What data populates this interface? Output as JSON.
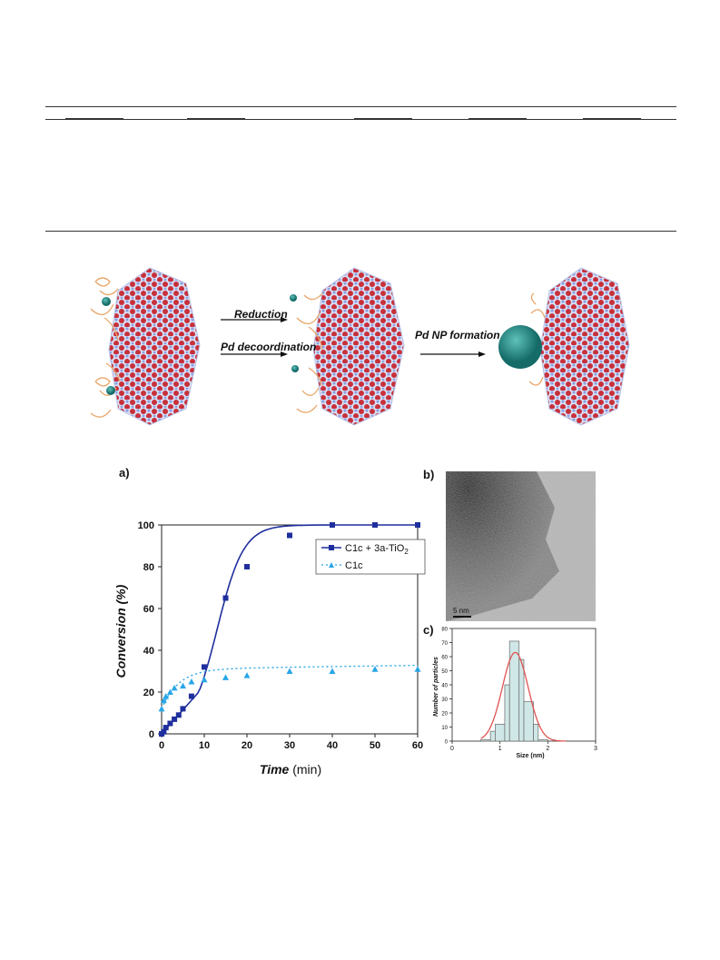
{
  "scheme": {
    "step1_line1": "Reduction",
    "step1_line2": "Pd decoordination",
    "step2": "Pd NP formation"
  },
  "panels": {
    "a": "a)",
    "b": "b)",
    "c": "c)"
  },
  "tem": {
    "scale_bar": "5 nm"
  },
  "colors": {
    "series1": "#1f2f9e",
    "series2": "#29a6e6",
    "hist_fill": "#cfe7e6",
    "fit": "#e05252",
    "tio2_red": "#c8303a",
    "tio2_blue": "#a9b8e8",
    "pd": "#1f8a86"
  },
  "chart_data": [
    {
      "type": "line",
      "xlabel_bold": "Time",
      "xlabel_unit": " (min)",
      "ylabel": "Conversion (%)",
      "xlim": [
        0,
        60
      ],
      "ylim": [
        0,
        100
      ],
      "xticks": [
        0,
        10,
        20,
        30,
        40,
        50,
        60
      ],
      "yticks": [
        0,
        20,
        40,
        60,
        80,
        100
      ],
      "legend_position": "top-right",
      "series": [
        {
          "name_main": "C1c + 3a-TiO",
          "name_sub": "2",
          "marker": "square",
          "line": "solid",
          "x": [
            0,
            0.5,
            1,
            2,
            3,
            4,
            5,
            7,
            10,
            15,
            20,
            30,
            40,
            50,
            60
          ],
          "y": [
            0,
            1,
            3,
            5,
            7,
            9,
            12,
            18,
            32,
            65,
            80,
            95,
            100,
            100,
            100
          ]
        },
        {
          "name": "C1c",
          "marker": "triangle",
          "line": "dotted",
          "x": [
            0,
            0.5,
            1,
            2,
            3,
            5,
            7,
            10,
            15,
            20,
            30,
            40,
            50,
            60
          ],
          "y": [
            12,
            16,
            18,
            20,
            22,
            23,
            25,
            26,
            27,
            28,
            30,
            30,
            31,
            31
          ]
        }
      ]
    },
    {
      "type": "bar",
      "xlabel": "Size (nm)",
      "ylabel": "Number of particles",
      "xlim": [
        0,
        3
      ],
      "ylim": [
        0,
        80
      ],
      "xticks": [
        0,
        1,
        2,
        3
      ],
      "yticks": [
        0,
        10,
        20,
        30,
        40,
        50,
        60,
        70,
        80
      ],
      "bins": [
        [
          0.6,
          0.8
        ],
        [
          0.8,
          0.9
        ],
        [
          0.9,
          1.1
        ],
        [
          1.1,
          1.2
        ],
        [
          1.2,
          1.4
        ],
        [
          1.4,
          1.5
        ],
        [
          1.5,
          1.7
        ],
        [
          1.7,
          1.8
        ],
        [
          1.8,
          2.0
        ],
        [
          2.0,
          2.2
        ]
      ],
      "values": [
        1,
        7,
        12,
        40,
        71,
        58,
        28,
        12,
        1,
        0
      ],
      "fit": "gaussian",
      "fit_center": 1.32,
      "fit_peak": 63,
      "fit_sigma": 0.27
    }
  ]
}
